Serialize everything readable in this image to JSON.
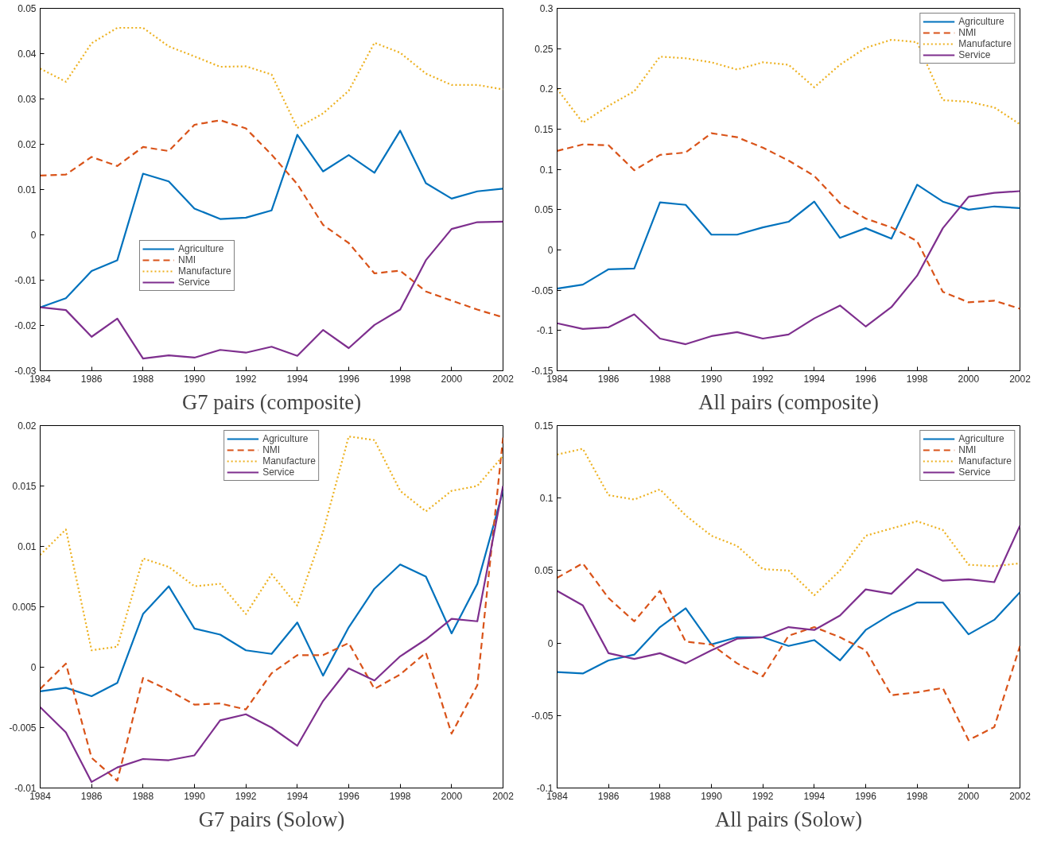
{
  "chart_data": [
    {
      "type": "line",
      "title": "G7 pairs (composite)",
      "x": [
        1984,
        1985,
        1986,
        1987,
        1988,
        1989,
        1990,
        1991,
        1992,
        1993,
        1994,
        1995,
        1996,
        1997,
        1998,
        1999,
        2000,
        2001,
        2002
      ],
      "xlim": [
        1984,
        2002
      ],
      "xticks": [
        1984,
        1986,
        1988,
        1990,
        1992,
        1994,
        1996,
        1998,
        2000,
        2002
      ],
      "ylim": [
        -0.03,
        0.05
      ],
      "yticks": [
        -0.03,
        -0.02,
        -0.01,
        0,
        0.01,
        0.02,
        0.03,
        0.04,
        0.05
      ],
      "grid": false,
      "legend": "center",
      "series": [
        {
          "name": "Agriculture",
          "color": "#0072bd",
          "line_style": "solid",
          "values": [
            -0.016,
            -0.014,
            -0.008,
            -0.0056,
            0.0135,
            0.0118,
            0.0058,
            0.0035,
            0.0038,
            0.0054,
            0.0221,
            0.014,
            0.0176,
            0.0137,
            0.023,
            0.0114,
            0.008,
            0.0096,
            0.0102
          ]
        },
        {
          "name": "NMI",
          "color": "#d95319",
          "line_style": "dashed",
          "values": [
            0.0131,
            0.0133,
            0.0172,
            0.0152,
            0.0194,
            0.0185,
            0.0243,
            0.0253,
            0.0235,
            0.0177,
            0.0112,
            0.0022,
            -0.0018,
            -0.0085,
            -0.0079,
            -0.0125,
            -0.0145,
            -0.0165,
            -0.0182
          ]
        },
        {
          "name": "Manufacture",
          "color": "#edb120",
          "line_style": "dotted",
          "values": [
            0.0367,
            0.0338,
            0.0423,
            0.0457,
            0.0457,
            0.0416,
            0.0394,
            0.0371,
            0.0372,
            0.0354,
            0.0236,
            0.0268,
            0.0318,
            0.0424,
            0.0402,
            0.0356,
            0.0331,
            0.0331,
            0.0321
          ]
        },
        {
          "name": "Service",
          "color": "#7e2f8e",
          "line_style": "solid",
          "values": [
            -0.016,
            -0.0166,
            -0.0225,
            -0.0185,
            -0.0273,
            -0.0266,
            -0.0271,
            -0.0254,
            -0.026,
            -0.0247,
            -0.0267,
            -0.021,
            -0.025,
            -0.0199,
            -0.0165,
            -0.0056,
            0.0013,
            0.0028,
            0.0029
          ]
        }
      ]
    },
    {
      "type": "line",
      "title": "All pairs (composite)",
      "x": [
        1984,
        1985,
        1986,
        1987,
        1988,
        1989,
        1990,
        1991,
        1992,
        1993,
        1994,
        1995,
        1996,
        1997,
        1998,
        1999,
        2000,
        2001,
        2002
      ],
      "xlim": [
        1984,
        2002
      ],
      "xticks": [
        1984,
        1986,
        1988,
        1990,
        1992,
        1994,
        1996,
        1998,
        2000,
        2002
      ],
      "ylim": [
        -0.15,
        0.3
      ],
      "yticks": [
        -0.15,
        -0.1,
        -0.05,
        0,
        0.05,
        0.1,
        0.15,
        0.2,
        0.25,
        0.3
      ],
      "grid": false,
      "legend": "top right",
      "series": [
        {
          "name": "Agriculture",
          "color": "#0072bd",
          "line_style": "solid",
          "values": [
            -0.048,
            -0.043,
            -0.024,
            -0.023,
            0.059,
            0.056,
            0.019,
            0.019,
            0.028,
            0.035,
            0.06,
            0.015,
            0.027,
            0.014,
            0.081,
            0.06,
            0.05,
            0.054,
            0.052
          ]
        },
        {
          "name": "NMI",
          "color": "#d95319",
          "line_style": "dashed",
          "values": [
            0.123,
            0.131,
            0.13,
            0.099,
            0.118,
            0.121,
            0.145,
            0.14,
            0.127,
            0.111,
            0.092,
            0.058,
            0.039,
            0.028,
            0.011,
            -0.052,
            -0.065,
            -0.063,
            -0.073
          ]
        },
        {
          "name": "Manufacture",
          "color": "#edb120",
          "line_style": "dotted",
          "values": [
            0.2,
            0.158,
            0.179,
            0.197,
            0.24,
            0.238,
            0.233,
            0.224,
            0.233,
            0.23,
            0.202,
            0.23,
            0.251,
            0.261,
            0.258,
            0.186,
            0.184,
            0.177,
            0.156
          ]
        },
        {
          "name": "Service",
          "color": "#7e2f8e",
          "line_style": "solid",
          "values": [
            -0.091,
            -0.098,
            -0.096,
            -0.08,
            -0.11,
            -0.117,
            -0.107,
            -0.102,
            -0.11,
            -0.105,
            -0.085,
            -0.069,
            -0.095,
            -0.071,
            -0.032,
            0.027,
            0.066,
            0.071,
            0.073
          ]
        }
      ]
    },
    {
      "type": "line",
      "title": "G7 pairs (Solow)",
      "x": [
        1984,
        1985,
        1986,
        1987,
        1988,
        1989,
        1990,
        1991,
        1992,
        1993,
        1994,
        1995,
        1996,
        1997,
        1998,
        1999,
        2000,
        2001,
        2002
      ],
      "xlim": [
        1984,
        2002
      ],
      "xticks": [
        1984,
        1986,
        1988,
        1990,
        1992,
        1994,
        1996,
        1998,
        2000,
        2002
      ],
      "ylim": [
        -0.01,
        0.02
      ],
      "yticks": [
        -0.01,
        -0.005,
        0,
        0.005,
        0.01,
        0.015,
        0.02
      ],
      "grid": false,
      "legend": "top",
      "series": [
        {
          "name": "Agriculture",
          "color": "#0072bd",
          "line_style": "solid",
          "values": [
            -0.002,
            -0.0017,
            -0.0024,
            -0.0013,
            0.0044,
            0.0067,
            0.0032,
            0.0027,
            0.0014,
            0.0011,
            0.0037,
            -0.0007,
            0.0033,
            0.0065,
            0.0085,
            0.0075,
            0.0028,
            0.0069,
            0.0146
          ]
        },
        {
          "name": "NMI",
          "color": "#d95319",
          "line_style": "dashed",
          "values": [
            -0.0018,
            0.0003,
            -0.0075,
            -0.0094,
            -0.0009,
            -0.0019,
            -0.0031,
            -0.003,
            -0.0035,
            -0.0005,
            0.001,
            0.001,
            0.002,
            -0.0018,
            -0.0006,
            0.0012,
            -0.0055,
            -0.0015,
            0.019
          ]
        },
        {
          "name": "Manufacture",
          "color": "#edb120",
          "line_style": "dotted",
          "values": [
            0.0093,
            0.0114,
            0.0014,
            0.0017,
            0.009,
            0.0083,
            0.0067,
            0.0069,
            0.0044,
            0.0077,
            0.0051,
            0.0112,
            0.0191,
            0.0188,
            0.0146,
            0.0129,
            0.0146,
            0.015,
            0.0175
          ]
        },
        {
          "name": "Service",
          "color": "#7e2f8e",
          "line_style": "solid",
          "values": [
            -0.0033,
            -0.0054,
            -0.0095,
            -0.0083,
            -0.0076,
            -0.0077,
            -0.0073,
            -0.0044,
            -0.0039,
            -0.005,
            -0.0065,
            -0.0028,
            -0.0001,
            -0.0011,
            0.0009,
            0.0023,
            0.004,
            0.0038,
            0.015
          ]
        }
      ]
    },
    {
      "type": "line",
      "title": "All pairs (Solow)",
      "x": [
        1984,
        1985,
        1986,
        1987,
        1988,
        1989,
        1990,
        1991,
        1992,
        1993,
        1994,
        1995,
        1996,
        1997,
        1998,
        1999,
        2000,
        2001,
        2002
      ],
      "xlim": [
        1984,
        2002
      ],
      "xticks": [
        1984,
        1986,
        1988,
        1990,
        1992,
        1994,
        1996,
        1998,
        2000,
        2002
      ],
      "ylim": [
        -0.1,
        0.15
      ],
      "yticks": [
        -0.1,
        -0.05,
        0,
        0.05,
        0.1,
        0.15
      ],
      "grid": false,
      "legend": "top right",
      "series": [
        {
          "name": "Agriculture",
          "color": "#0072bd",
          "line_style": "solid",
          "values": [
            -0.02,
            -0.021,
            -0.012,
            -0.008,
            0.011,
            0.024,
            -0.001,
            0.004,
            0.004,
            -0.002,
            0.002,
            -0.012,
            0.009,
            0.02,
            0.028,
            0.028,
            0.006,
            0.016,
            0.035
          ]
        },
        {
          "name": "NMI",
          "color": "#d95319",
          "line_style": "dashed",
          "values": [
            0.045,
            0.055,
            0.031,
            0.015,
            0.036,
            0.001,
            -0.001,
            -0.014,
            -0.023,
            0.005,
            0.011,
            0.004,
            -0.005,
            -0.036,
            -0.034,
            -0.031,
            -0.067,
            -0.058,
            -0.002
          ]
        },
        {
          "name": "Manufacture",
          "color": "#edb120",
          "line_style": "dotted",
          "values": [
            0.13,
            0.134,
            0.102,
            0.099,
            0.106,
            0.088,
            0.074,
            0.067,
            0.051,
            0.05,
            0.033,
            0.05,
            0.074,
            0.079,
            0.084,
            0.078,
            0.054,
            0.053,
            0.055
          ]
        },
        {
          "name": "Service",
          "color": "#7e2f8e",
          "line_style": "solid",
          "values": [
            0.036,
            0.026,
            -0.007,
            -0.011,
            -0.007,
            -0.014,
            -0.005,
            0.003,
            0.004,
            0.011,
            0.009,
            0.019,
            0.037,
            0.034,
            0.051,
            0.043,
            0.044,
            0.042,
            0.081
          ]
        }
      ]
    }
  ]
}
